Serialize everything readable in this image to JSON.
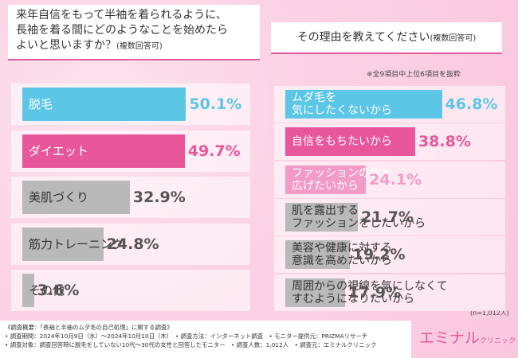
{
  "chart_data": [
    {
      "type": "bar",
      "orientation": "horizontal",
      "title": "来年自信をもって半袖を着られるように、\n長袖を着る間にどのようなことを始めたら\nよいと思いますか？",
      "title_note": "(複数回答可)",
      "categories": [
        "脱毛",
        "ダイエット",
        "美肌づくり",
        "筋力トレーニング",
        "その他"
      ],
      "values": [
        50.1,
        49.7,
        32.9,
        24.8,
        3.6
      ],
      "value_labels": [
        "50.1%",
        "49.7%",
        "32.9%",
        "24.8%",
        "3.6%"
      ],
      "colors": [
        "#5cc6e6",
        "#e9579b",
        "#b9b9b9",
        "#b9b9b9",
        "#b9b9b9"
      ]
    },
    {
      "type": "bar",
      "orientation": "horizontal",
      "title": "その理由を教えてください",
      "title_note": "(複数回答可)",
      "note": "※全9項目中上位6項目を抜粋",
      "categories": [
        "ムダ毛を\n気にしたくないから",
        "自信をもちたいから",
        "ファッションの幅を\n広げたいから",
        "肌を露出する\nファッションをしたいから",
        "美容や健康に対する\n意識を高めたいから",
        "周囲からの視線を気にしなくて\nすむようになりたいから"
      ],
      "values": [
        46.8,
        38.8,
        24.1,
        21.7,
        19.2,
        17.9
      ],
      "value_labels": [
        "46.8%",
        "38.8%",
        "24.1%",
        "21.7%",
        "19.2%",
        "17.9%"
      ],
      "colors": [
        "#5cc6e6",
        "#e9579b",
        "#f29bc8",
        "#b9b9b9",
        "#b9b9b9",
        "#b9b9b9"
      ]
    }
  ],
  "sample_note": "(n=1,012人)",
  "footer": [
    "《調査概要：「長袖と半袖のムダ毛の自己処理」に関する調査》",
    "• 調査期間：2024年10月9日（水）～2024年10月10日（木）　• 調査方法：インターネット調査　• モニター提供元：PRIZMAリサーチ",
    "• 調査対象：調査回答時に脱毛をしていない10代～30代の女性と回答したモニター　• 調査人数：1,012人　• 調査元：エミナルクリニック"
  ],
  "logo": {
    "name": "エミナル",
    "sub": "クリニック"
  }
}
